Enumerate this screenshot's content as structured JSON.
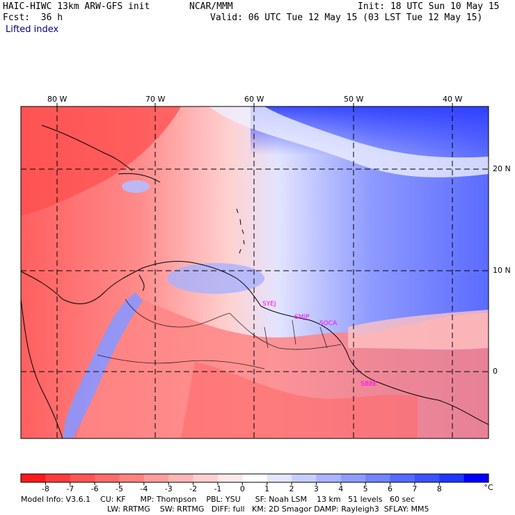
{
  "header": {
    "model": "HAIC-HIWC 13km ARW-GFS init",
    "org": "NCAR/MMM",
    "init": "Init: 18 UTC Sun 10 May 15",
    "fcst": "Fcst:  36 h",
    "valid": "Valid: 06 UTC Tue 12 May 15 (03 LST Tue 12 May 15)",
    "field": "Lifted index"
  },
  "map": {
    "lon_labels": [
      "80 W",
      "70 W",
      "60 W",
      "50 W",
      "40 W"
    ],
    "lat_labels": [
      "20 N",
      "10 N",
      "0"
    ],
    "stations": [
      "SYEJ",
      "SMJP",
      "SOCA",
      "SBBE"
    ]
  },
  "colorbar": {
    "labels": [
      "-8",
      "-7",
      "-6",
      "-5",
      "-4",
      "-3",
      "-2",
      "-1",
      "0",
      "1",
      "2",
      "3",
      "4",
      "5",
      "6",
      "7",
      "8"
    ],
    "unit": "°C",
    "colors": [
      "#ff1a1a",
      "#ff3b3b",
      "#ff5555",
      "#ff6b6b",
      "#ff8282",
      "#ff9c9c",
      "#ffb5b5",
      "#ffcfcf",
      "#ffe8e8",
      "#ffffff",
      "#e2e6ff",
      "#c6ceff",
      "#aab5ff",
      "#8e9cff",
      "#7283ff",
      "#566aff",
      "#3a51ff",
      "#1e38ff",
      "#0000ff"
    ]
  },
  "footer": {
    "line1": "Model Info: V3.6.1    CU: KF      MP: Thompson    PBL: YSU      SF: Noah LSM    13 km   51 levels   60 sec",
    "line2": "LW: RRTMG    SW: RRTMG   DIFF: full   KM: 2D Smagor DAMP: Rayleigh3  SFLAY: MM5"
  }
}
